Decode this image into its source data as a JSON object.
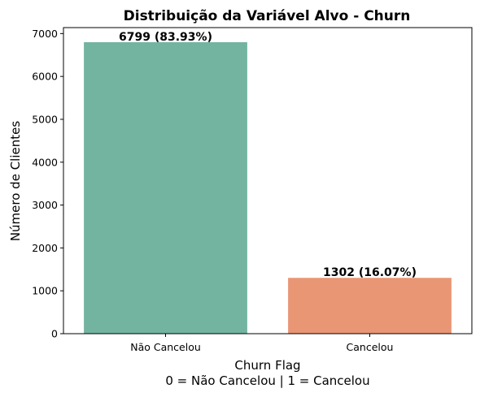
{
  "chart_data": {
    "type": "bar",
    "title": "Distribuição da Variável Alvo - Churn",
    "xlabel_line1": "Churn Flag",
    "xlabel_line2": "0 = Não Cancelou | 1 = Cancelou",
    "ylabel": "Número de Clientes",
    "categories": [
      "Não Cancelou",
      "Cancelou"
    ],
    "values": [
      6799,
      1302
    ],
    "data_labels": [
      "6799 (83.93%)",
      "1302 (16.07%)"
    ],
    "colors": [
      "#73b4a0",
      "#e99675"
    ],
    "ylim": [
      0,
      7139
    ],
    "yticks": [
      0,
      1000,
      2000,
      3000,
      4000,
      5000,
      6000,
      7000
    ],
    "grid": false,
    "legend": "none"
  }
}
